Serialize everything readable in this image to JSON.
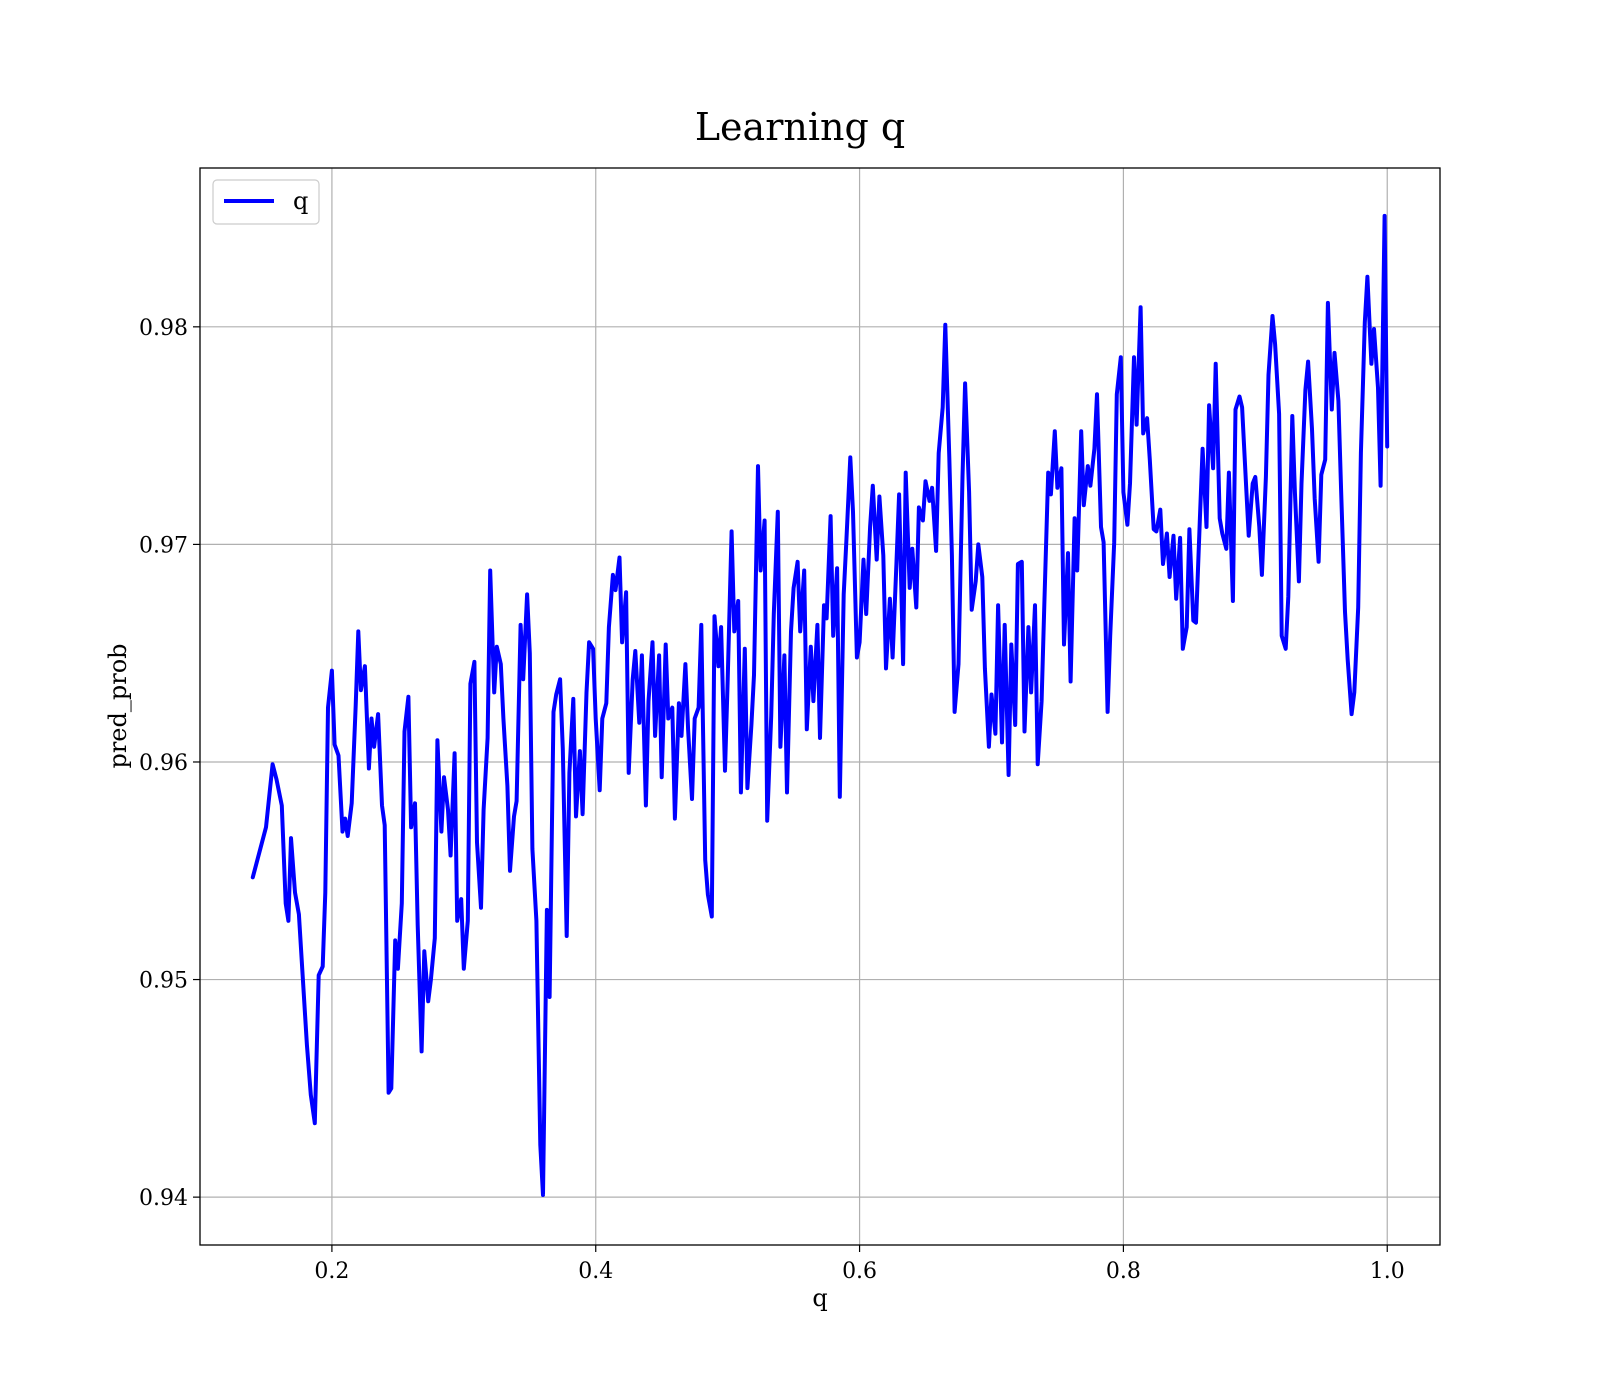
{
  "chart_data": {
    "type": "line",
    "title": "Learning q",
    "xlabel": "q",
    "ylabel": "pred_prob",
    "xlim": [
      0.1,
      1.04
    ],
    "ylim": [
      0.9378,
      0.9873
    ],
    "xticks": [
      {
        "value": 0.2,
        "label": "0.2"
      },
      {
        "value": 0.4,
        "label": "0.4"
      },
      {
        "value": 0.6,
        "label": "0.6"
      },
      {
        "value": 0.8,
        "label": "0.8"
      },
      {
        "value": 1.0,
        "label": "1.0"
      }
    ],
    "yticks": [
      {
        "value": 0.94,
        "label": "0.94"
      },
      {
        "value": 0.95,
        "label": "0.95"
      },
      {
        "value": 0.96,
        "label": "0.96"
      },
      {
        "value": 0.97,
        "label": "0.97"
      },
      {
        "value": 0.98,
        "label": "0.98"
      }
    ],
    "grid": true,
    "legend": {
      "placement": "top-left"
    },
    "series": [
      {
        "name": "q",
        "color": "#0000ff",
        "x": [
          0.14,
          0.15,
          0.155,
          0.158,
          0.162,
          0.165,
          0.167,
          0.169,
          0.172,
          0.175,
          0.178,
          0.181,
          0.184,
          0.187,
          0.19,
          0.193,
          0.195,
          0.197,
          0.2,
          0.202,
          0.205,
          0.208,
          0.21,
          0.212,
          0.215,
          0.218,
          0.22,
          0.222,
          0.225,
          0.228,
          0.23,
          0.232,
          0.235,
          0.238,
          0.24,
          0.243,
          0.245,
          0.248,
          0.25,
          0.253,
          0.255,
          0.258,
          0.26,
          0.263,
          0.265,
          0.268,
          0.27,
          0.273,
          0.275,
          0.278,
          0.28,
          0.283,
          0.285,
          0.288,
          0.29,
          0.293,
          0.295,
          0.298,
          0.3,
          0.303,
          0.305,
          0.308,
          0.31,
          0.313,
          0.315,
          0.318,
          0.32,
          0.323,
          0.325,
          0.328,
          0.33,
          0.333,
          0.335,
          0.338,
          0.34,
          0.343,
          0.345,
          0.348,
          0.35,
          0.352,
          0.355,
          0.358,
          0.36,
          0.363,
          0.365,
          0.368,
          0.37,
          0.373,
          0.375,
          0.378,
          0.38,
          0.383,
          0.385,
          0.388,
          0.39,
          0.393,
          0.395,
          0.398,
          0.4,
          0.403,
          0.405,
          0.408,
          0.41,
          0.413,
          0.415,
          0.418,
          0.42,
          0.423,
          0.425,
          0.428,
          0.43,
          0.433,
          0.435,
          0.438,
          0.44,
          0.443,
          0.445,
          0.448,
          0.45,
          0.453,
          0.455,
          0.458,
          0.46,
          0.463,
          0.465,
          0.468,
          0.47,
          0.473,
          0.475,
          0.478,
          0.48,
          0.483,
          0.485,
          0.488,
          0.49,
          0.493,
          0.495,
          0.498,
          0.5,
          0.503,
          0.505,
          0.508,
          0.51,
          0.513,
          0.515,
          0.518,
          0.52,
          0.523,
          0.525,
          0.528,
          0.53,
          0.533,
          0.535,
          0.538,
          0.54,
          0.543,
          0.545,
          0.548,
          0.55,
          0.553,
          0.555,
          0.558,
          0.56,
          0.563,
          0.565,
          0.568,
          0.57,
          0.573,
          0.575,
          0.578,
          0.58,
          0.583,
          0.585,
          0.588,
          0.59,
          0.593,
          0.595,
          0.598,
          0.6,
          0.603,
          0.605,
          0.608,
          0.61,
          0.613,
          0.615,
          0.618,
          0.62,
          0.623,
          0.625,
          0.628,
          0.63,
          0.633,
          0.635,
          0.638,
          0.64,
          0.643,
          0.645,
          0.648,
          0.65,
          0.653,
          0.655,
          0.658,
          0.66,
          0.663,
          0.665,
          0.668,
          0.67,
          0.672,
          0.675,
          0.678,
          0.68,
          0.683,
          0.685,
          0.688,
          0.69,
          0.693,
          0.695,
          0.698,
          0.7,
          0.703,
          0.705,
          0.708,
          0.71,
          0.713,
          0.715,
          0.718,
          0.72,
          0.723,
          0.725,
          0.728,
          0.73,
          0.733,
          0.735,
          0.738,
          0.74,
          0.743,
          0.745,
          0.748,
          0.75,
          0.753,
          0.755,
          0.758,
          0.76,
          0.763,
          0.765,
          0.768,
          0.77,
          0.773,
          0.775,
          0.778,
          0.78,
          0.783,
          0.785,
          0.788,
          0.79,
          0.793,
          0.795,
          0.798,
          0.8,
          0.803,
          0.805,
          0.808,
          0.81,
          0.813,
          0.815,
          0.818,
          0.82,
          0.823,
          0.825,
          0.828,
          0.83,
          0.833,
          0.835,
          0.838,
          0.84,
          0.843,
          0.845,
          0.848,
          0.85,
          0.853,
          0.855,
          0.858,
          0.86,
          0.863,
          0.865,
          0.868,
          0.87,
          0.873,
          0.875,
          0.878,
          0.88,
          0.883,
          0.885,
          0.888,
          0.89,
          0.893,
          0.895,
          0.898,
          0.9,
          0.903,
          0.905,
          0.908,
          0.91,
          0.913,
          0.915,
          0.918,
          0.92,
          0.923,
          0.925,
          0.928,
          0.93,
          0.933,
          0.935,
          0.938,
          0.94,
          0.943,
          0.945,
          0.948,
          0.95,
          0.953,
          0.955,
          0.958,
          0.96,
          0.963,
          0.965,
          0.968,
          0.97,
          0.973,
          0.975,
          0.978,
          0.98,
          0.983,
          0.985,
          0.988,
          0.99,
          0.993,
          0.995,
          0.998,
          1.0
        ],
        "y": [
          0.9547,
          0.957,
          0.9599,
          0.9592,
          0.958,
          0.9535,
          0.9527,
          0.9565,
          0.954,
          0.953,
          0.95,
          0.947,
          0.9447,
          0.9434,
          0.9502,
          0.9506,
          0.954,
          0.9625,
          0.9642,
          0.9608,
          0.9603,
          0.9568,
          0.9574,
          0.9566,
          0.9581,
          0.9626,
          0.966,
          0.9633,
          0.9644,
          0.9597,
          0.962,
          0.9607,
          0.9622,
          0.958,
          0.9571,
          0.9448,
          0.945,
          0.9518,
          0.9505,
          0.9535,
          0.9614,
          0.963,
          0.957,
          0.9581,
          0.9525,
          0.9467,
          0.9513,
          0.949,
          0.95,
          0.9519,
          0.961,
          0.9568,
          0.9593,
          0.9578,
          0.9557,
          0.9604,
          0.9527,
          0.9537,
          0.9505,
          0.9527,
          0.9636,
          0.9646,
          0.9563,
          0.9533,
          0.9578,
          0.9611,
          0.9688,
          0.9632,
          0.9653,
          0.9645,
          0.962,
          0.9589,
          0.955,
          0.9575,
          0.9582,
          0.9663,
          0.9638,
          0.9677,
          0.965,
          0.956,
          0.9527,
          0.9424,
          0.9401,
          0.9532,
          0.9492,
          0.9623,
          0.9631,
          0.9638,
          0.9606,
          0.952,
          0.9595,
          0.9629,
          0.9575,
          0.9605,
          0.9576,
          0.9632,
          0.9655,
          0.9652,
          0.962,
          0.9587,
          0.962,
          0.9627,
          0.9662,
          0.9686,
          0.9679,
          0.9694,
          0.9655,
          0.9678,
          0.9595,
          0.9638,
          0.9651,
          0.9618,
          0.9649,
          0.958,
          0.9628,
          0.9655,
          0.9612,
          0.9649,
          0.9593,
          0.9654,
          0.962,
          0.9625,
          0.9574,
          0.9627,
          0.9612,
          0.9645,
          0.9615,
          0.9583,
          0.962,
          0.9625,
          0.9663,
          0.9555,
          0.9539,
          0.9529,
          0.9667,
          0.9644,
          0.9662,
          0.9596,
          0.9638,
          0.9706,
          0.966,
          0.9674,
          0.9586,
          0.9652,
          0.9588,
          0.9617,
          0.964,
          0.9736,
          0.9688,
          0.9711,
          0.9573,
          0.9621,
          0.9668,
          0.9715,
          0.9607,
          0.9649,
          0.9586,
          0.966,
          0.968,
          0.9692,
          0.966,
          0.9688,
          0.9615,
          0.9653,
          0.9628,
          0.9663,
          0.9611,
          0.9672,
          0.9666,
          0.9713,
          0.9658,
          0.9689,
          0.9584,
          0.9677,
          0.9702,
          0.974,
          0.9715,
          0.9648,
          0.9655,
          0.9693,
          0.9668,
          0.9708,
          0.9727,
          0.9693,
          0.9722,
          0.9695,
          0.9643,
          0.9675,
          0.9648,
          0.9692,
          0.9723,
          0.9645,
          0.9733,
          0.968,
          0.9698,
          0.9671,
          0.9717,
          0.9711,
          0.9729,
          0.972,
          0.9726,
          0.9697,
          0.9742,
          0.9763,
          0.9801,
          0.974,
          0.9695,
          0.9623,
          0.9645,
          0.9731,
          0.9774,
          0.9724,
          0.967,
          0.9683,
          0.97,
          0.9685,
          0.9643,
          0.9607,
          0.9631,
          0.9613,
          0.9672,
          0.9609,
          0.9663,
          0.9594,
          0.9654,
          0.9617,
          0.9691,
          0.9692,
          0.9614,
          0.9662,
          0.9632,
          0.9672,
          0.9599,
          0.9628,
          0.9672,
          0.9733,
          0.9723,
          0.9752,
          0.9726,
          0.9735,
          0.9654,
          0.9696,
          0.9637,
          0.9712,
          0.9688,
          0.9752,
          0.9718,
          0.9736,
          0.9727,
          0.9744,
          0.9769,
          0.9708,
          0.9701,
          0.9623,
          0.9658,
          0.9701,
          0.9769,
          0.9786,
          0.9724,
          0.9709,
          0.9728,
          0.9786,
          0.9755,
          0.9809,
          0.9751,
          0.9758,
          0.9739,
          0.9707,
          0.9706,
          0.9716,
          0.9691,
          0.9705,
          0.9685,
          0.9704,
          0.9675,
          0.9703,
          0.9652,
          0.9662,
          0.9707,
          0.9665,
          0.9664,
          0.9712,
          0.9744,
          0.9708,
          0.9764,
          0.9735,
          0.9783,
          0.9712,
          0.9705,
          0.9698,
          0.9733,
          0.9674,
          0.9762,
          0.9768,
          0.9763,
          0.9727,
          0.9704,
          0.9728,
          0.9731,
          0.9708,
          0.9686,
          0.9731,
          0.9778,
          0.9805,
          0.9792,
          0.976,
          0.9658,
          0.9652,
          0.9676,
          0.9759,
          0.9724,
          0.9683,
          0.9728,
          0.9771,
          0.9784,
          0.9753,
          0.9721,
          0.9692,
          0.9732,
          0.9739,
          0.9811,
          0.9762,
          0.9788,
          0.9766,
          0.9725,
          0.9669,
          0.9647,
          0.9622,
          0.9632,
          0.9671,
          0.9742,
          0.9802,
          0.9823,
          0.9783,
          0.9799,
          0.9772,
          0.9727,
          0.9851,
          0.9745
        ]
      }
    ]
  }
}
